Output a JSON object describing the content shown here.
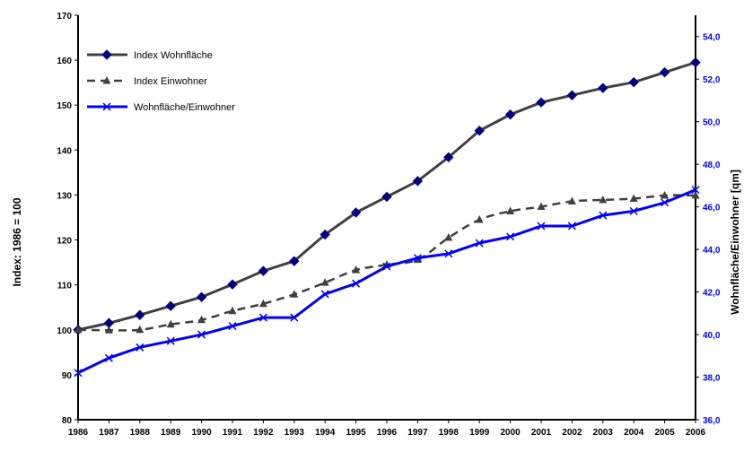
{
  "chart_data": {
    "type": "line",
    "x": [
      "1986",
      "1987",
      "1988",
      "1989",
      "1990",
      "1991",
      "1992",
      "1993",
      "1994",
      "1995",
      "1996",
      "1997",
      "1998",
      "1999",
      "2000",
      "2001",
      "2002",
      "2003",
      "2004",
      "2005",
      "2006"
    ],
    "ylabel": "Index: 1986 = 100",
    "ylabel_right": "Wohnfläche/Einwohner [qm]",
    "ylim": [
      80,
      170
    ],
    "ylim_right": [
      36.0,
      55.0
    ],
    "yticks": [
      "80",
      "90",
      "100",
      "110",
      "120",
      "130",
      "140",
      "150",
      "160",
      "170"
    ],
    "yticks_right": [
      "36,0",
      "38,0",
      "40,0",
      "42,0",
      "44,0",
      "46,0",
      "48,0",
      "50,0",
      "52,0",
      "54,0"
    ],
    "grid": false,
    "legend_position": "top-left",
    "series": [
      {
        "name": "Index Wohnfläche",
        "axis": "left",
        "color": "#404040",
        "marker": "diamond",
        "marker_color": "#000080",
        "values": [
          100.0,
          101.5,
          103.3,
          105.3,
          107.3,
          110.1,
          113.1,
          115.3,
          121.2,
          126.1,
          129.6,
          133.1,
          138.4,
          144.3,
          147.9,
          150.6,
          152.2,
          153.8,
          155.1,
          157.3,
          159.5
        ]
      },
      {
        "name": "Index Einwohner",
        "axis": "left",
        "color": "#404040",
        "dashed": true,
        "marker": "triangle",
        "values": [
          100.0,
          99.9,
          100.0,
          101.2,
          102.2,
          104.2,
          105.8,
          107.9,
          110.5,
          113.3,
          114.5,
          115.6,
          120.5,
          124.5,
          126.4,
          127.4,
          128.6,
          128.9,
          129.2,
          129.9,
          129.9
        ]
      },
      {
        "name": "Wohnfläche/Einwohner",
        "axis": "right",
        "color": "#0000ff",
        "marker": "x",
        "values": [
          38.2,
          38.9,
          39.4,
          39.7,
          40.0,
          40.4,
          40.8,
          40.8,
          41.9,
          42.4,
          43.2,
          43.6,
          43.8,
          44.3,
          44.6,
          45.1,
          45.1,
          45.6,
          45.8,
          46.2,
          46.8
        ]
      }
    ]
  }
}
